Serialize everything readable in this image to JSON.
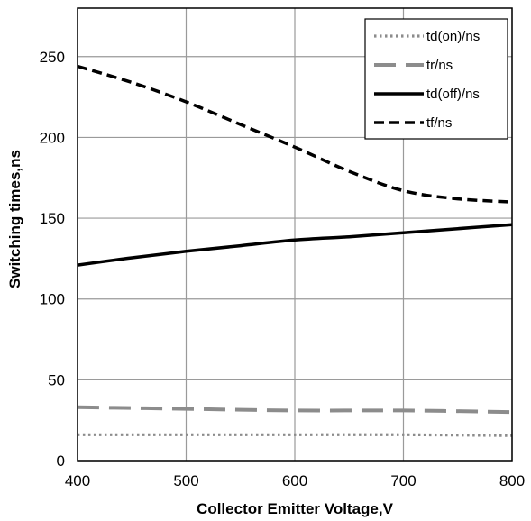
{
  "chart_data": {
    "type": "line",
    "title": "",
    "xlabel": "Collector Emitter Voltage,V",
    "ylabel": "Switching times,ns",
    "xlim": [
      400,
      800
    ],
    "ylim": [
      0,
      280
    ],
    "x_ticks": [
      400,
      500,
      600,
      700,
      800
    ],
    "y_ticks": [
      0,
      50,
      100,
      150,
      200,
      250
    ],
    "grid": true,
    "legend_position": "top-right",
    "series": [
      {
        "name": "td(on)/ns",
        "style": "dotted",
        "color": "#8c8c8c",
        "x": [
          400,
          500,
          600,
          700,
          800
        ],
        "y": [
          16,
          16,
          16,
          16,
          15.5
        ]
      },
      {
        "name": "tr/ns",
        "style": "long-dash",
        "color": "#8c8c8c",
        "x": [
          400,
          500,
          600,
          700,
          800
        ],
        "y": [
          33,
          32,
          31,
          31,
          30
        ]
      },
      {
        "name": "td(off)/ns",
        "style": "solid",
        "color": "#000000",
        "x": [
          400,
          450,
          500,
          550,
          600,
          650,
          700,
          750,
          800
        ],
        "y": [
          121,
          125.5,
          129.5,
          133,
          136.5,
          138.5,
          141,
          143.5,
          146
        ]
      },
      {
        "name": "tf/ns",
        "style": "dash",
        "color": "#000000",
        "x": [
          400,
          450,
          500,
          550,
          600,
          650,
          700,
          750,
          800
        ],
        "y": [
          244,
          234,
          222,
          208,
          194,
          179,
          167,
          162,
          160
        ]
      }
    ]
  }
}
